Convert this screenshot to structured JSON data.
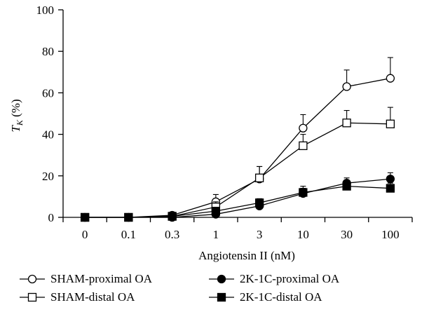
{
  "chart_data": {
    "type": "line",
    "categories": [
      "0",
      "0.1",
      "0.3",
      "1",
      "3",
      "10",
      "30",
      "100"
    ],
    "ylim": [
      0,
      100
    ],
    "yticks": [
      0,
      20,
      40,
      60,
      80,
      100
    ],
    "ylabel_main": "T",
    "ylabel_sub": "K",
    "ylabel_unit": " (%)",
    "xlabel": "Angiotensin II (nM)",
    "series": [
      {
        "name": "SHAM-proximal OA",
        "marker": "circle",
        "fill": "#ffffff",
        "values": [
          0,
          0,
          1,
          7.5,
          18.5,
          43,
          63,
          67
        ],
        "errors": [
          0,
          0,
          0.5,
          3.5,
          6,
          6.5,
          8,
          10
        ]
      },
      {
        "name": "SHAM-distal OA",
        "marker": "square",
        "fill": "#ffffff",
        "values": [
          0,
          0,
          0.5,
          5,
          19,
          34.5,
          45.5,
          45
        ],
        "errors": [
          0,
          0,
          0.5,
          2.5,
          5.5,
          5.5,
          6,
          8
        ]
      },
      {
        "name": "2K-1C-proximal OA",
        "marker": "circle",
        "fill": "#000000",
        "values": [
          0,
          0,
          0,
          1.5,
          5.5,
          11.5,
          16.5,
          18.5
        ],
        "errors": [
          0,
          0,
          0,
          1,
          1.5,
          2.5,
          2.5,
          3
        ]
      },
      {
        "name": "2K-1C-distal OA",
        "marker": "square",
        "fill": "#000000",
        "values": [
          0,
          0,
          0.5,
          3,
          7,
          12,
          15,
          14
        ],
        "errors": [
          0,
          0,
          0.5,
          1.5,
          2,
          3,
          2.5,
          2.5
        ]
      }
    ],
    "grid": false,
    "legend_position": "bottom"
  }
}
